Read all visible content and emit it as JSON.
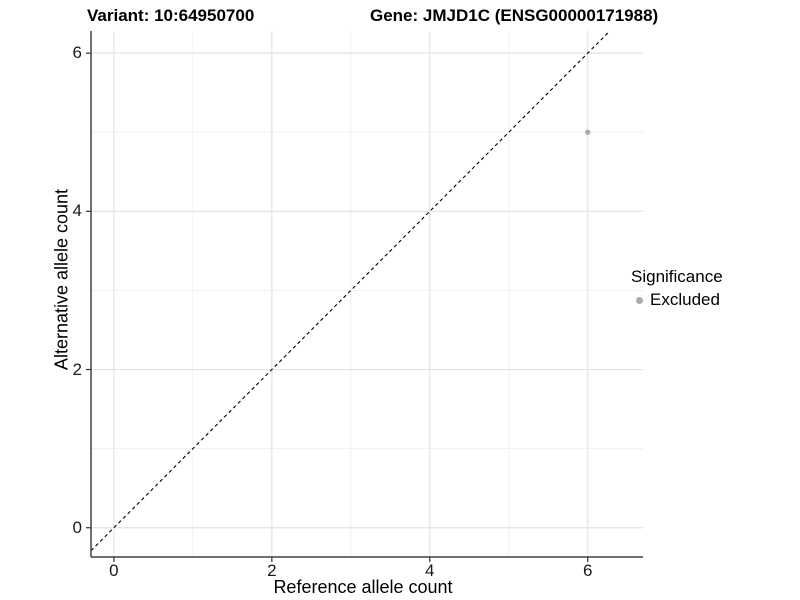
{
  "titles": {
    "variant": "Variant: 10:64950700",
    "gene": "Gene: JMJD1C (ENSG00000171988)"
  },
  "chart_data": {
    "type": "scatter",
    "title_left": "Variant: 10:64950700",
    "title_right": "Gene: JMJD1C (ENSG00000171988)",
    "xlabel": "Reference allele count",
    "ylabel": "Alternative allele count",
    "x_ticks": [
      0,
      2,
      4,
      6
    ],
    "y_ticks": [
      0,
      2,
      4,
      6
    ],
    "x_minor_ticks": [
      1,
      3,
      5
    ],
    "y_minor_ticks": [
      1,
      3,
      5
    ],
    "xlim": [
      -0.29,
      6.7
    ],
    "ylim": [
      -0.37,
      6.28
    ],
    "grid": "major and minor gridlines, light gray on white",
    "points": [
      {
        "x": 6,
        "y": 5,
        "series": "Excluded"
      }
    ],
    "point_color": "#ababab",
    "reference_line": {
      "slope": 1,
      "intercept": 0,
      "style": "dashed",
      "color": "#000000"
    },
    "legend": {
      "title": "Significance",
      "position": "right",
      "entries": [
        {
          "label": "Excluded",
          "color": "#ababab",
          "marker": "circle"
        }
      ]
    },
    "colors": {
      "background": "#ffffff",
      "major_grid": "#e3e3e3",
      "minor_grid": "#f0f0f0",
      "axis_line": "#404040",
      "tick_mark": "#333333",
      "text": "#000000"
    }
  }
}
